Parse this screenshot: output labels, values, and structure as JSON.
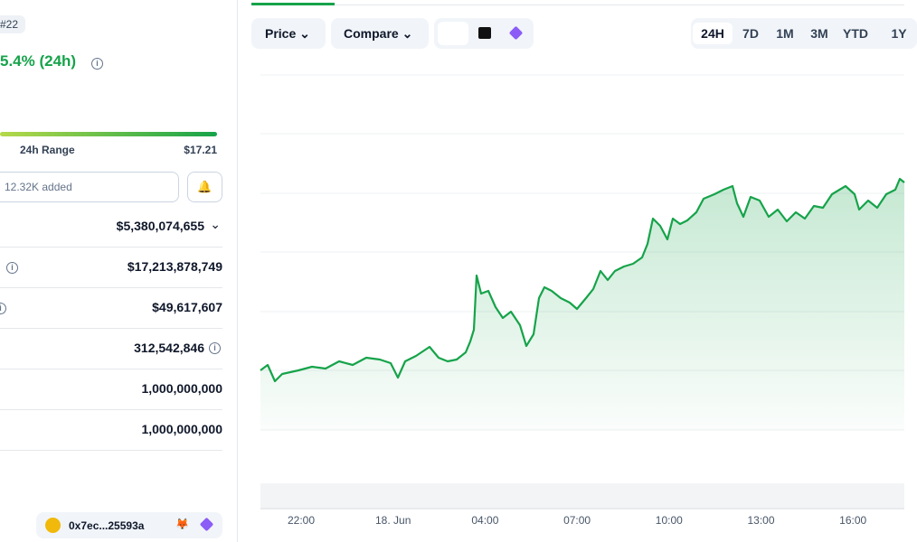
{
  "header": {
    "rank": "#22",
    "change": "5.4% (24h)"
  },
  "range": {
    "label": "24h Range",
    "high": "$17.21"
  },
  "watchlist": {
    "added": "12.32K added"
  },
  "stats": [
    "$5,380,074,655",
    "$17,213,878,749",
    "$49,617,607",
    "312,542,846",
    "1,000,000,000",
    "1,000,000,000"
  ],
  "contract": {
    "address": "0x7ec...25593a"
  },
  "toolbar": {
    "price": "Price",
    "compare": "Compare",
    "ranges": [
      "24H",
      "7D",
      "1M",
      "3M",
      "YTD",
      "1Y"
    ]
  },
  "x_labels": [
    "22:00",
    "18. Jun",
    "04:00",
    "07:00",
    "10:00",
    "13:00",
    "16:00"
  ]
}
